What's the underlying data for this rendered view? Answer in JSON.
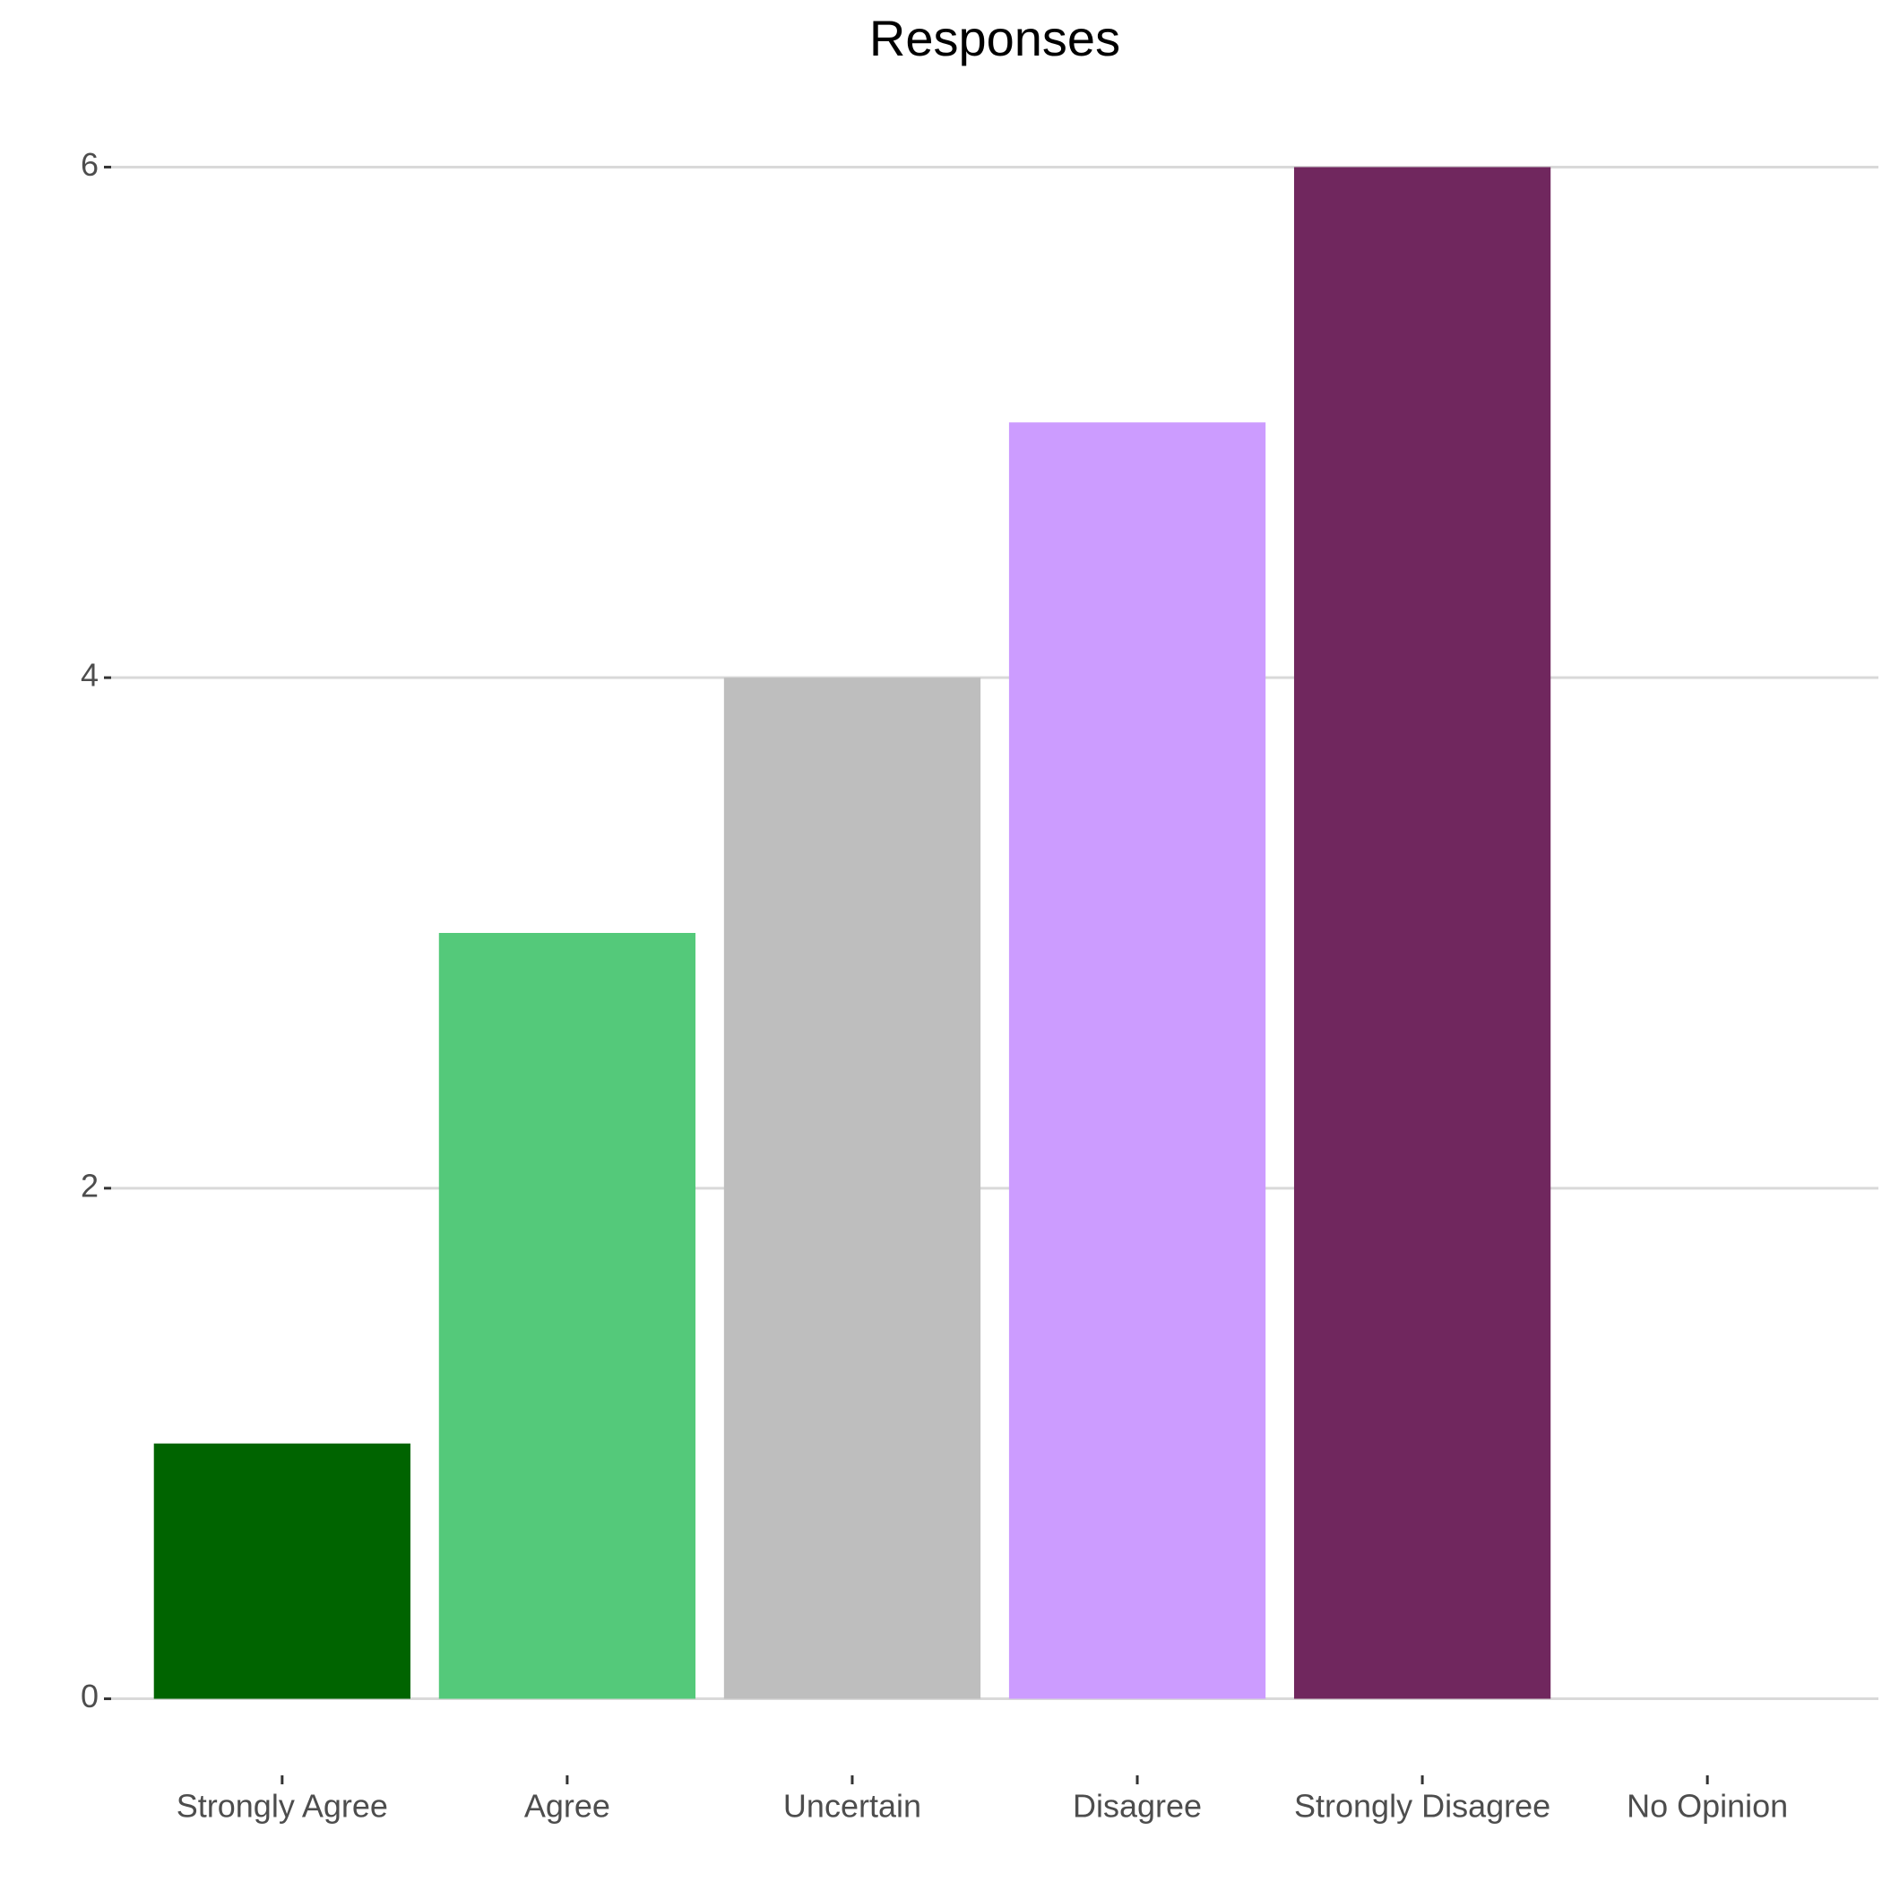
{
  "chart_data": {
    "type": "bar",
    "title": "Responses",
    "categories": [
      "Strongly Agree",
      "Agree",
      "Uncertain",
      "Disagree",
      "Strongly Disagree",
      "No Opinion"
    ],
    "values": [
      1,
      3,
      4,
      5,
      6,
      0
    ],
    "colors": [
      "#006400",
      "#54c97a",
      "#bebebe",
      "#cc9cff",
      "#70275e"
    ],
    "ylim": [
      -0.3,
      6.3
    ],
    "yticks": [
      0,
      2,
      4,
      6
    ],
    "grid": true
  }
}
